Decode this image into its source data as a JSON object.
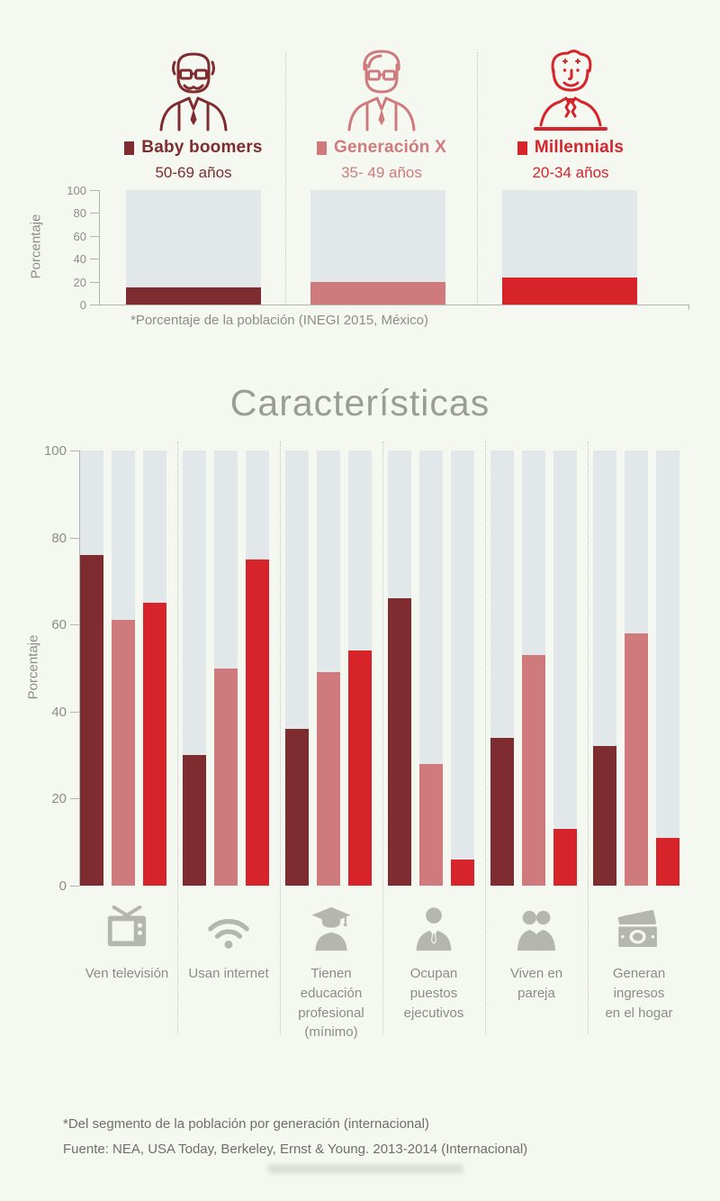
{
  "page": {
    "background": "#f5f8f1"
  },
  "personas": [
    {
      "name": "Baby boomers",
      "age": "50-69 años",
      "color": "#7f2c31",
      "icon": "older-man-icon"
    },
    {
      "name": "Generación X",
      "age": "35- 49 años",
      "color": "#cf7b7e",
      "icon": "man-glasses-icon"
    },
    {
      "name": "Millennials",
      "age": "20-34 años",
      "color": "#d7242b",
      "icon": "young-man-icon"
    }
  ],
  "chart_data": [
    {
      "type": "bar",
      "title": "",
      "ylabel": "Porcentaje",
      "ylim": [
        0,
        100
      ],
      "yticks": [
        0,
        20,
        40,
        60,
        80,
        100
      ],
      "grid": false,
      "legend": "none",
      "categories": [
        "Baby boomers",
        "Generación X",
        "Millennials"
      ],
      "values": [
        15,
        20,
        24
      ],
      "colors": [
        "#7f2c31",
        "#cf7b7e",
        "#d7242b"
      ],
      "track_color": "#e2e7e9",
      "caption": "*Porcentaje de la población  (INEGI 2015, México)"
    },
    {
      "type": "bar",
      "title": "Características",
      "ylabel": "Porcentaje",
      "ylim": [
        0,
        100
      ],
      "yticks": [
        0,
        20,
        40,
        60,
        80,
        100
      ],
      "grid": false,
      "legend": "top-icons-header",
      "categories": [
        "Ven televisión",
        "Usan internet",
        "Tienen\neducación\nprofesional\n(mínimo)",
        "Ocupan\npuestos\nejecutivos",
        "Viven en\npareja",
        "Generan\ningresos\nen el hogar"
      ],
      "category_icons": [
        "tv-icon",
        "wifi-icon",
        "graduate-icon",
        "executive-icon",
        "couple-icon",
        "money-icon"
      ],
      "track_color": "#e2e7e9",
      "series": [
        {
          "name": "Baby boomers",
          "color": "#7f2c31",
          "values": [
            76,
            30,
            36,
            66,
            34,
            32
          ]
        },
        {
          "name": "Generación X",
          "color": "#cf7b7e",
          "values": [
            61,
            50,
            49,
            28,
            53,
            58
          ]
        },
        {
          "name": "Millennials",
          "color": "#d7242b",
          "values": [
            65,
            75,
            54,
            6,
            13,
            11
          ]
        }
      ]
    }
  ],
  "footer": {
    "note": "*Del segmento de la población por generación (internacional)",
    "source": "Fuente: NEA, USA Today, Berkeley, Ernst & Young. 2013-2014 (Internacional)"
  }
}
